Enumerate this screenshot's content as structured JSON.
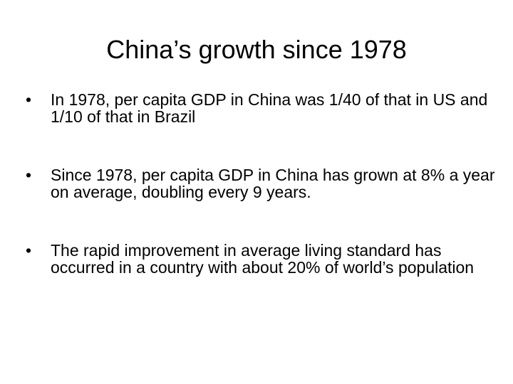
{
  "slide": {
    "title": "China’s growth since 1978",
    "bullet_symbol": "•",
    "bullets": [
      {
        "text": "In 1978, per capita GDP in China was 1/40 of that in US and 1/10 of that in Brazil"
      },
      {
        "text": "Since 1978, per capita GDP in China has grown at 8% a year on average, doubling every 9 years."
      },
      {
        "text": "The rapid improvement in average living standard has occurred in a country with about 20% of world’s population"
      }
    ]
  }
}
